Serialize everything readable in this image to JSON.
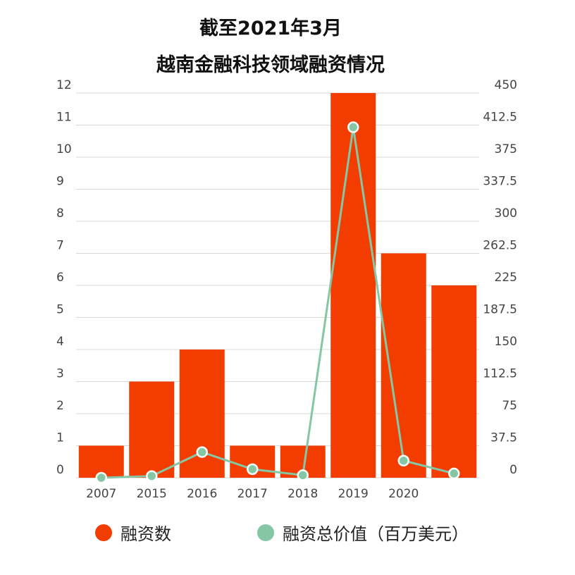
{
  "chart_data": {
    "type": "bar",
    "title": "截至2021年3月",
    "subtitle": "越南金融科技领域融资情况",
    "categories": [
      "2007",
      "2015",
      "2016",
      "2017",
      "2018",
      "2019",
      "2020",
      ""
    ],
    "series": [
      {
        "name": "融资数",
        "type": "bar",
        "axis": "left",
        "values": [
          1,
          3,
          4,
          1,
          1,
          12,
          7,
          6
        ]
      },
      {
        "name": "融资总价值（百万美元）",
        "type": "line",
        "axis": "right",
        "values": [
          0,
          2,
          30,
          10,
          3,
          410,
          20,
          5
        ]
      }
    ],
    "y_left": {
      "min": 0,
      "max": 12,
      "ticks": [
        "0",
        "1",
        "2",
        "3",
        "4",
        "5",
        "6",
        "7",
        "8",
        "9",
        "10",
        "11",
        "12"
      ]
    },
    "y_right": {
      "min": 0,
      "max": 450,
      "ticks": [
        "0",
        "37.5",
        "75",
        "112.5",
        "150",
        "187.5",
        "225",
        "262.5",
        "300",
        "337.5",
        "375",
        "412.5",
        "450"
      ]
    },
    "grid": true,
    "legend_position": "bottom",
    "colors": {
      "bar": "#f23c00",
      "line": "#85c7a5",
      "grid": "#d8d8d8"
    }
  }
}
